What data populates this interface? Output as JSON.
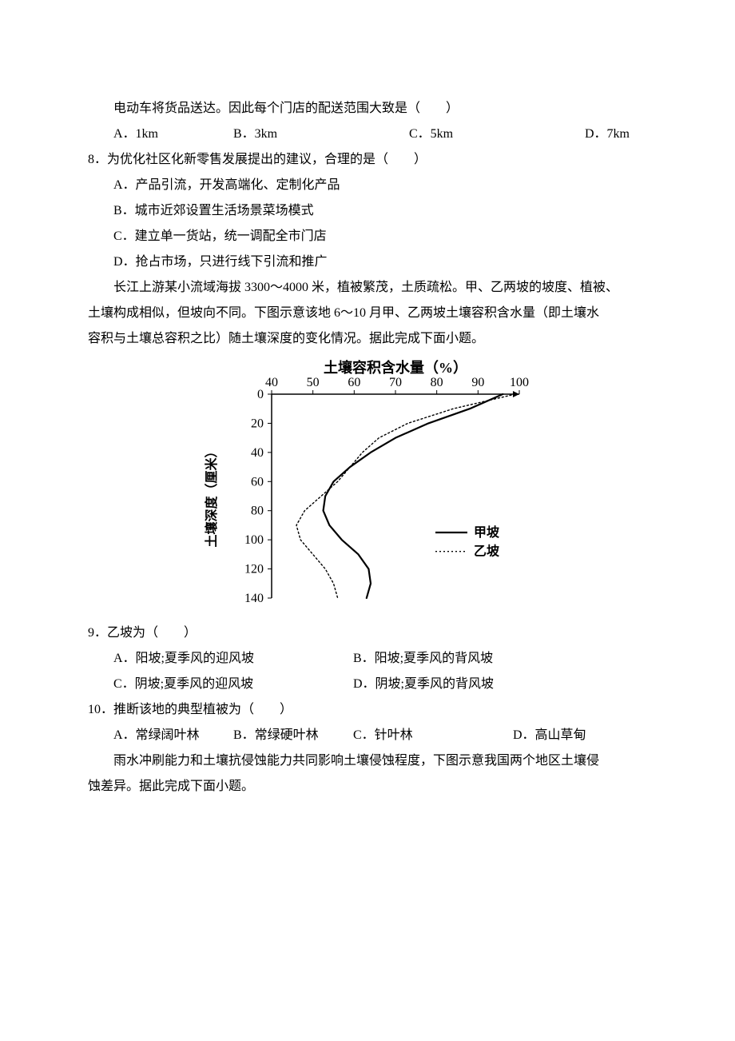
{
  "intro7": "电动车将货品送达。因此每个门店的配送范围大致是（　　）",
  "q7_opts": {
    "A": "A．1km",
    "B": "B．3km",
    "C": "C．5km",
    "D": "D．7km"
  },
  "q8": "8．为优化社区化新零售发展提出的建议，合理的是（　　）",
  "q8_opts": {
    "A": "A．产品引流，开发高端化、定制化产品",
    "B": "B．城市近郊设置生活场景菜场模式",
    "C": "C．建立单一货站，统一调配全市门店",
    "D": "D．抢占市场，只进行线下引流和推广"
  },
  "passage2_l1": "长江上游某小流域海拔 3300～4000 米，植被繁茂，土质疏松。甲、乙两坡的坡度、植被、",
  "passage2_l2": "土壤构成相似，但坡向不同。下图示意该地 6～10 月甲、乙两坡土壤容积含水量（即土壤水",
  "passage2_l3": "容积与土壤总容积之比）随土壤深度的变化情况。据此完成下面小题。",
  "chart": {
    "type": "line",
    "bg": "#ffffff",
    "axis_color": "#000000",
    "text_color": "#000000",
    "title": "土壤容积含水量（%）",
    "ylabel": "土壤深度（厘米）",
    "title_fontsize": 18,
    "label_fontsize": 16,
    "tick_fontsize": 16,
    "x_ticks": [
      40,
      50,
      60,
      70,
      80,
      90,
      100
    ],
    "y_ticks": [
      0,
      20,
      40,
      60,
      80,
      100,
      120,
      140
    ],
    "xlim": [
      40,
      100
    ],
    "ylim": [
      0,
      140
    ],
    "series": [
      {
        "name": "甲坡",
        "legend": "甲坡",
        "color": "#000000",
        "width": 2.2,
        "dash": "",
        "points": [
          [
            96,
            0
          ],
          [
            88,
            10
          ],
          [
            78,
            20
          ],
          [
            70,
            30
          ],
          [
            64,
            40
          ],
          [
            59,
            50
          ],
          [
            55,
            60
          ],
          [
            53,
            70
          ],
          [
            52.5,
            80
          ],
          [
            54,
            90
          ],
          [
            57,
            100
          ],
          [
            61,
            110
          ],
          [
            63.5,
            120
          ],
          [
            64,
            130
          ],
          [
            63,
            140
          ]
        ]
      },
      {
        "name": "乙坡",
        "legend": "乙坡",
        "color": "#000000",
        "width": 1.4,
        "dash": "2 3",
        "points": [
          [
            99,
            0
          ],
          [
            84,
            10
          ],
          [
            73,
            20
          ],
          [
            66,
            30
          ],
          [
            62,
            40
          ],
          [
            59,
            50
          ],
          [
            56,
            60
          ],
          [
            52,
            70
          ],
          [
            48,
            80
          ],
          [
            46,
            90
          ],
          [
            47,
            100
          ],
          [
            50,
            110
          ],
          [
            53,
            120
          ],
          [
            55,
            130
          ],
          [
            56,
            140
          ]
        ]
      }
    ],
    "legend_pos": "right-bottom"
  },
  "q9": "9．乙坡为（　　）",
  "q9_opts": {
    "A": "A．阳坡;夏季风的迎风坡",
    "B": "B．阳坡;夏季风的背风坡",
    "C": "C．阴坡;夏季风的迎风坡",
    "D": "D．阴坡;夏季风的背风坡"
  },
  "q10": "10．推断该地的典型植被为（　　）",
  "q10_opts": {
    "A": "A．常绿阔叶林",
    "B": "B．常绿硬叶林",
    "C": "C．针叶林",
    "D": "D．高山草甸"
  },
  "passage3_l1": "雨水冲刷能力和土壤抗侵蚀能力共同影响土壤侵蚀程度，下图示意我国两个地区土壤侵",
  "passage3_l2": "蚀差异。据此完成下面小题。"
}
